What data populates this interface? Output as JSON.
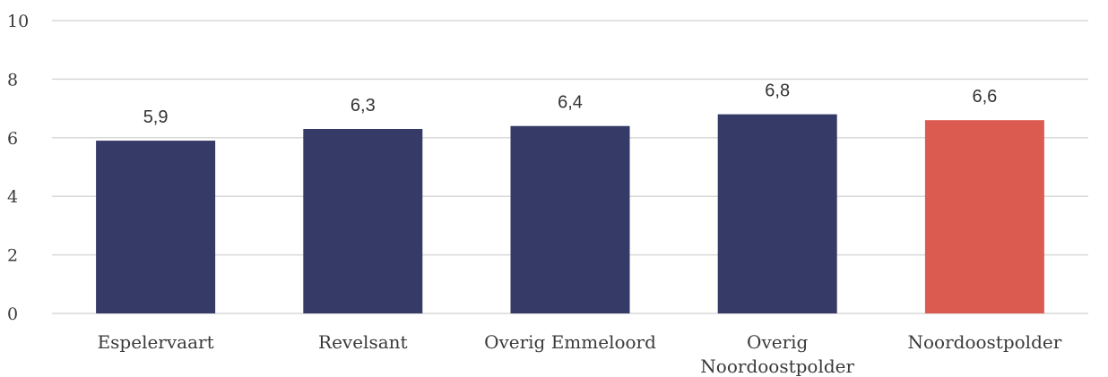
{
  "chart_data": {
    "type": "bar",
    "categories": [
      "Espelervaart",
      "Revelsant",
      "Overig Emmeloord",
      "Overig Noordoostpolder",
      "Noordoostpolder"
    ],
    "values": [
      5.9,
      6.3,
      6.4,
      6.8,
      6.6
    ],
    "value_labels": [
      "5,9",
      "6,3",
      "6,4",
      "6,8",
      "6,6"
    ],
    "ylim": [
      0,
      10
    ],
    "yticks": [
      0,
      2,
      4,
      6,
      8,
      10
    ],
    "grid": true,
    "legend": "none",
    "colors": {
      "default": "#363a66",
      "highlight": "#dc5b50",
      "grid": "#d9d9d9"
    },
    "highlight_index": 4
  }
}
